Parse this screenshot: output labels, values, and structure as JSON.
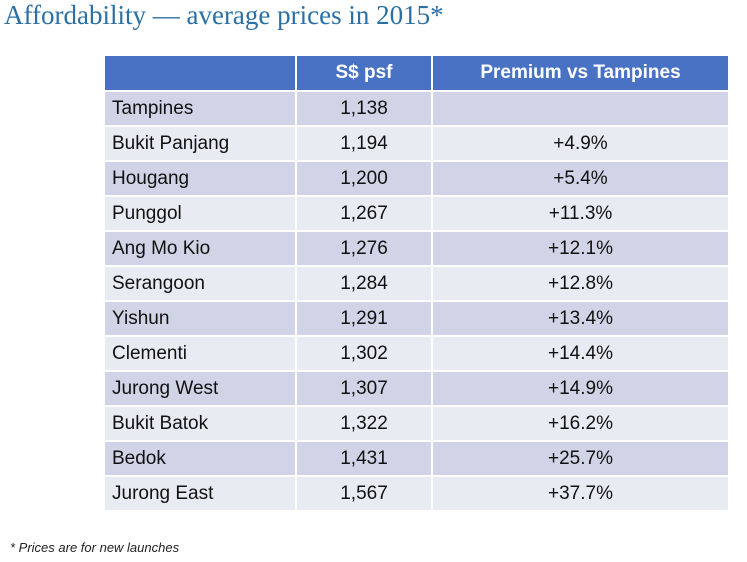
{
  "title": "Affordability — average prices in 2015*",
  "footnote": "* Prices are for new launches",
  "chart_data": {
    "type": "table",
    "columns": [
      "",
      "S$ psf",
      "Premium vs Tampines"
    ],
    "rows": [
      {
        "area": "Tampines",
        "psf": "1,138",
        "premium": ""
      },
      {
        "area": "Bukit Panjang",
        "psf": "1,194",
        "premium": "+4.9%"
      },
      {
        "area": "Hougang",
        "psf": "1,200",
        "premium": "+5.4%"
      },
      {
        "area": "Punggol",
        "psf": "1,267",
        "premium": "+11.3%"
      },
      {
        "area": "Ang Mo Kio",
        "psf": "1,276",
        "premium": "+12.1%"
      },
      {
        "area": "Serangoon",
        "psf": "1,284",
        "premium": "+12.8%"
      },
      {
        "area": "Yishun",
        "psf": "1,291",
        "premium": "+13.4%"
      },
      {
        "area": "Clementi",
        "psf": "1,302",
        "premium": "+14.4%"
      },
      {
        "area": "Jurong West",
        "psf": "1,307",
        "premium": "+14.9%"
      },
      {
        "area": "Bukit Batok",
        "psf": "1,322",
        "premium": "+16.2%"
      },
      {
        "area": "Bedok",
        "psf": "1,431",
        "premium": "+25.7%"
      },
      {
        "area": "Jurong East",
        "psf": "1,567",
        "premium": "+37.7%"
      }
    ]
  },
  "colors": {
    "title": "#2a6fa5",
    "header_bg": "#4a72c4",
    "row_dark": "#d0d4e6",
    "row_light": "#e9ebf3"
  }
}
